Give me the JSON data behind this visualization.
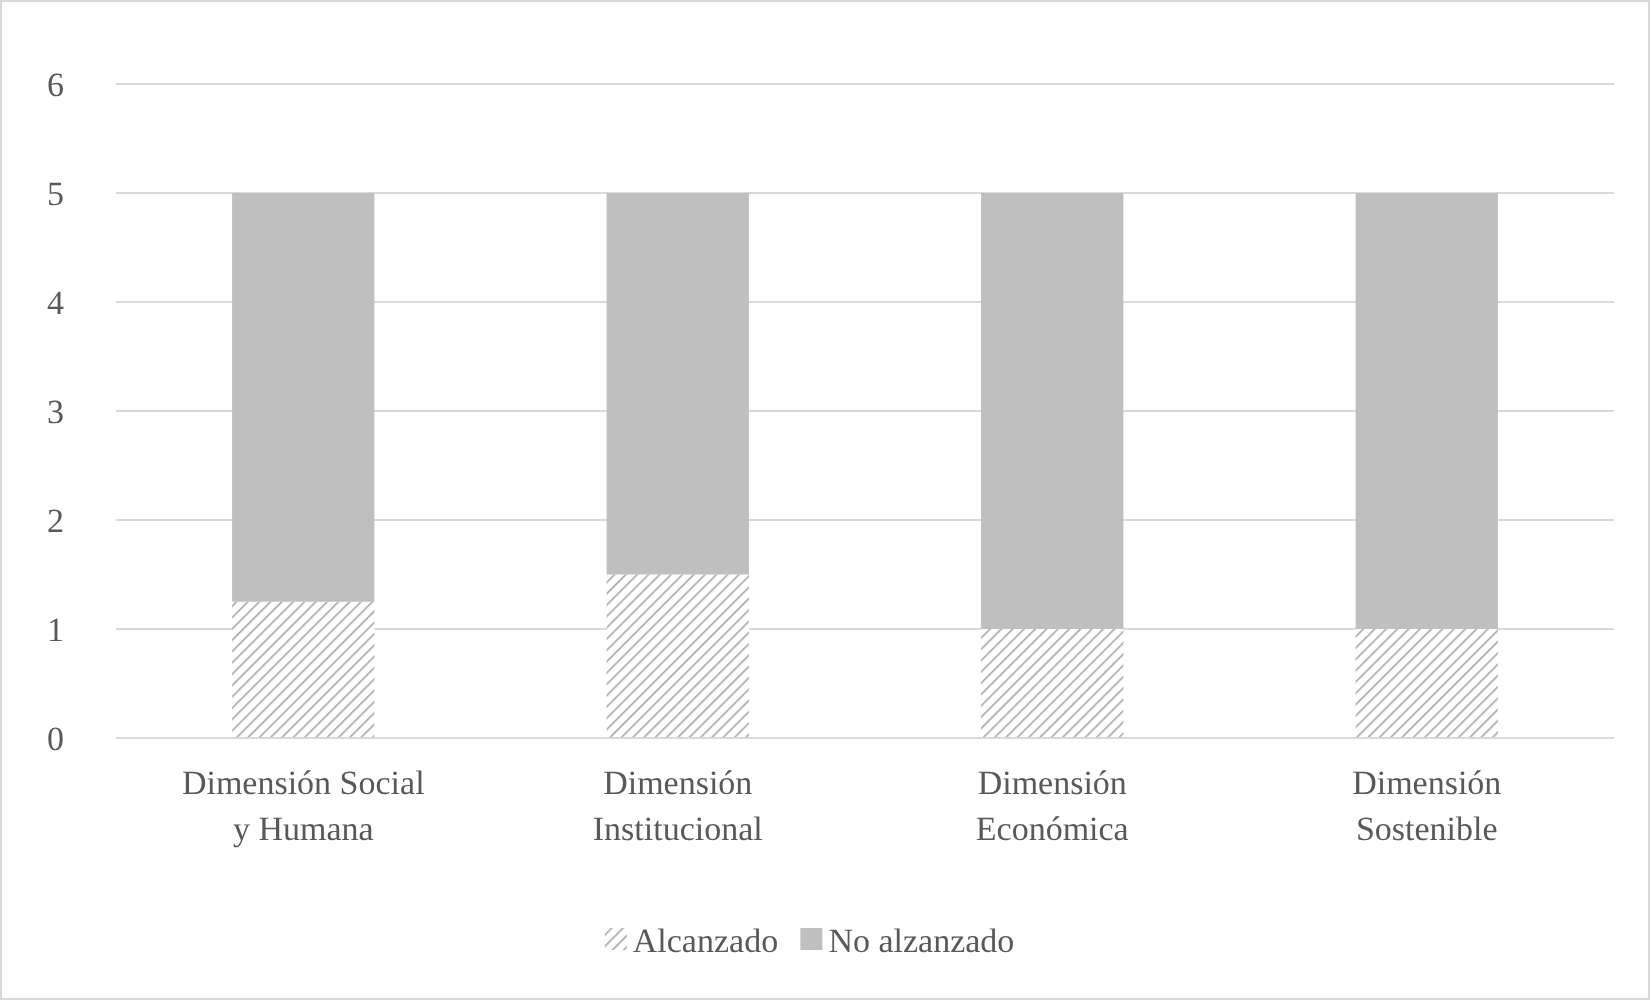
{
  "chart_data": {
    "type": "bar",
    "stacked": true,
    "categories": [
      "Dimensión Social y Humana",
      "Dimensión Institucional",
      "Dimensión Económica",
      "Dimensión Sostenible"
    ],
    "series": [
      {
        "name": "Alcanzado",
        "color": "#a6a6a6",
        "values": [
          1.25,
          1.5,
          1,
          1
        ]
      },
      {
        "name": "No alzanzado",
        "color": "#bfbfbf",
        "values": [
          3.75,
          3.5,
          4,
          4
        ]
      }
    ],
    "ylim": [
      0,
      6
    ],
    "yticks": [
      0,
      1,
      2,
      3,
      4,
      5,
      6
    ],
    "grid": "y",
    "legend": "bottom"
  }
}
